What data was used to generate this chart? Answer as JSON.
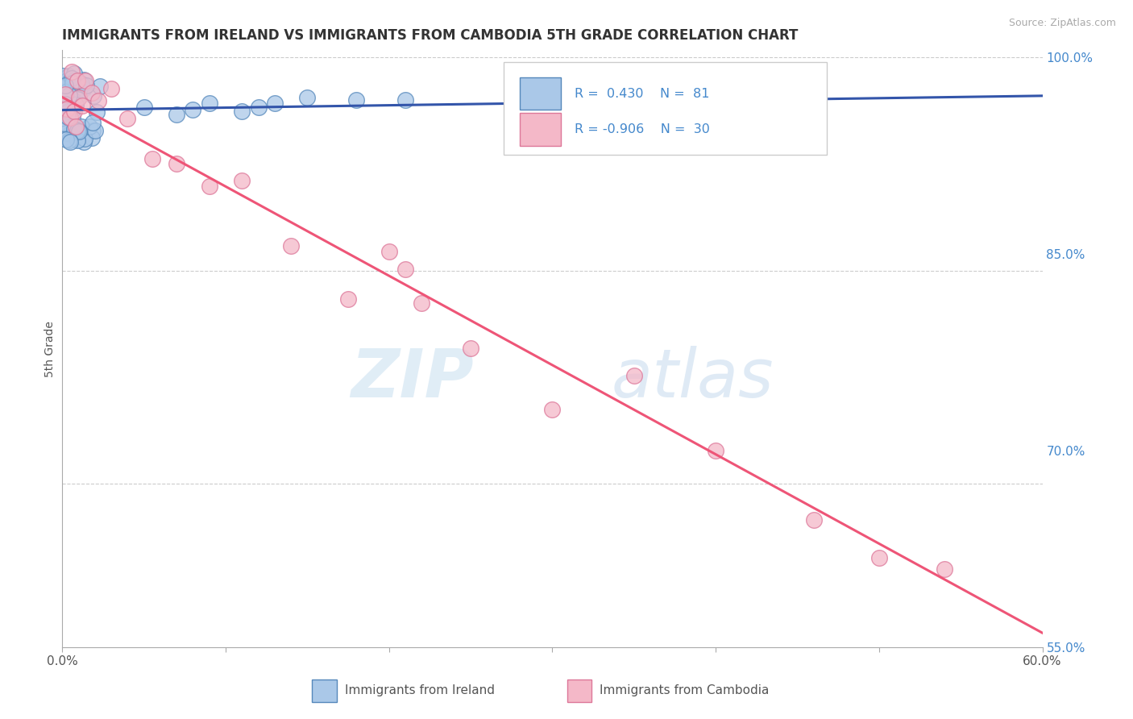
{
  "title": "IMMIGRANTS FROM IRELAND VS IMMIGRANTS FROM CAMBODIA 5TH GRADE CORRELATION CHART",
  "source": "Source: ZipAtlas.com",
  "ylabel": "5th Grade",
  "watermark": "ZIPatlas",
  "x_min": 0.0,
  "x_max": 0.6,
  "y_min": 0.585,
  "y_max": 1.005,
  "y_ticks": [
    1.0,
    0.85,
    0.7,
    0.55
  ],
  "y_tick_labels": [
    "100.0%",
    "85.0%",
    "70.0%",
    "55.0%"
  ],
  "ireland_color": "#aac8e8",
  "ireland_edge": "#5588bb",
  "cambodia_color": "#f4b8c8",
  "cambodia_edge": "#dd7799",
  "ireland_line_color": "#3355aa",
  "cambodia_line_color": "#ee5577",
  "ireland_R": 0.43,
  "ireland_N": 81,
  "cambodia_R": -0.906,
  "cambodia_N": 30,
  "background_color": "#ffffff",
  "grid_color": "#cccccc",
  "title_color": "#333333",
  "axis_label_color": "#555555",
  "tick_label_color": "#555555",
  "right_tick_color": "#4488cc",
  "ireland_trend_x0": 0.0,
  "ireland_trend_y0": 0.963,
  "ireland_trend_x1": 0.6,
  "ireland_trend_y1": 0.973,
  "cambodia_trend_x0": 0.0,
  "cambodia_trend_y0": 0.972,
  "cambodia_trend_x1": 0.6,
  "cambodia_trend_y1": 0.595
}
